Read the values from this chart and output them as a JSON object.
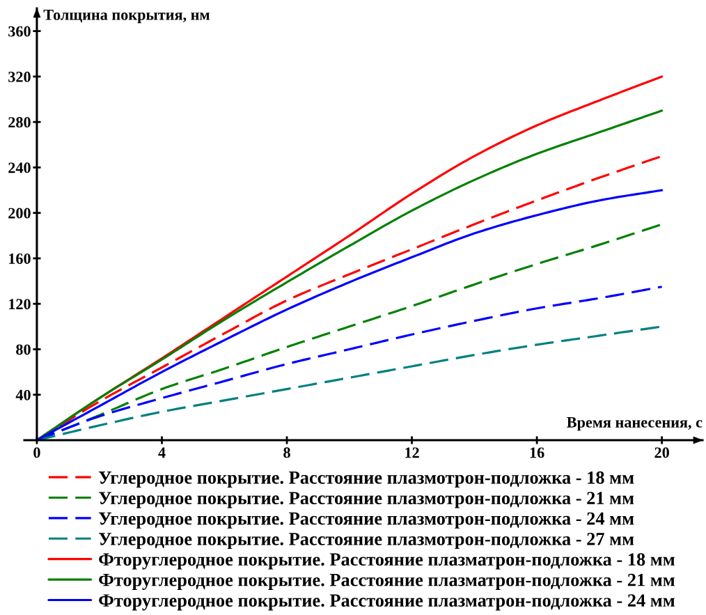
{
  "chart_data": {
    "type": "line",
    "xlabel": "Время нанесения, с",
    "ylabel": "Толщина покрытия, нм",
    "x": [
      0,
      2,
      4,
      6,
      8,
      10,
      12,
      14,
      16,
      18,
      20
    ],
    "xlim": [
      -0.4,
      21.3
    ],
    "xticks": [
      0,
      4,
      8,
      12,
      16,
      20
    ],
    "ylim": [
      0,
      380
    ],
    "yticks": [
      40,
      80,
      120,
      160,
      200,
      240,
      280,
      320,
      360
    ],
    "legend": "bottom",
    "series": [
      {
        "name": "Углеродное покрытие. Расстояние плазмотрон-подложка - 18 мм",
        "color": "#ff0000",
        "line_style": "dashed",
        "values": [
          0,
          34,
          64,
          94,
          123,
          146,
          168,
          190,
          211,
          231,
          250
        ]
      },
      {
        "name": "Углеродное покрытие. Расстояние плазмотрон-подложка - 21 мм",
        "color": "#008000",
        "line_style": "dashed",
        "values": [
          0,
          22,
          45,
          63,
          82,
          100,
          118,
          137,
          155,
          172,
          190
        ]
      },
      {
        "name": "Углеродное покрытие. Расстояние плазмотрон-подложка - 24 мм",
        "color": "#0000ff",
        "line_style": "dashed",
        "values": [
          0,
          21,
          37,
          52,
          67,
          80,
          93,
          105,
          116,
          125,
          135
        ]
      },
      {
        "name": "Углеродное покрытие. Расстояние плазмотрон-подложка - 27 мм",
        "color": "#008080",
        "line_style": "dashed",
        "values": [
          0,
          13,
          25,
          35,
          45,
          55,
          65,
          75,
          84,
          92,
          100
        ]
      },
      {
        "name": "Фторуглеродное покрытие. Расстояние плазматрон-подложка - 18 мм",
        "color": "#ff0000",
        "line_style": "solid",
        "values": [
          0,
          37,
          72,
          108,
          144,
          180,
          217,
          250,
          277,
          299,
          320
        ]
      },
      {
        "name": "Фторуглеродное покрытие. Расстояние плазматрон-подложка - 21 мм",
        "color": "#008000",
        "line_style": "solid",
        "values": [
          0,
          37,
          71,
          106,
          139,
          171,
          202,
          229,
          252,
          271,
          290
        ]
      },
      {
        "name": "Фторуглеродное покрытие. Расстояние плазматрон-подложка - 24 мм",
        "color": "#0000ff",
        "line_style": "solid",
        "values": [
          0,
          30,
          60,
          88,
          115,
          139,
          161,
          182,
          198,
          211,
          220
        ]
      }
    ]
  }
}
